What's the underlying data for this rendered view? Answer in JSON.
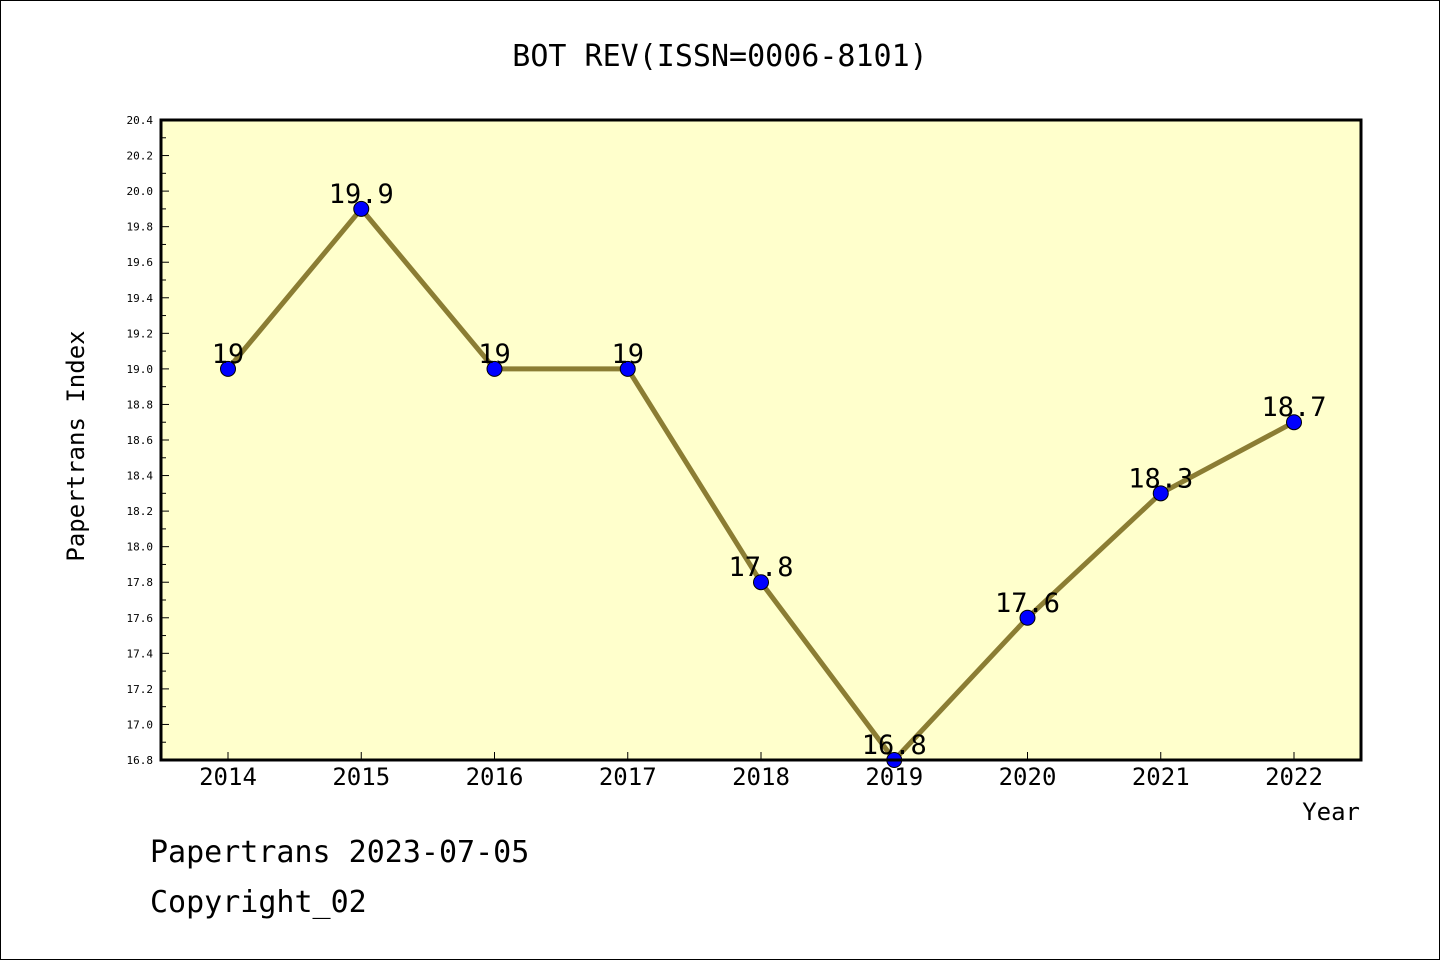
{
  "chart_data": {
    "type": "line",
    "title": "BOT REV(ISSN=0006-8101)",
    "xlabel": "Year",
    "ylabel": "Papertrans Index",
    "categories": [
      "2014",
      "2015",
      "2016",
      "2017",
      "2018",
      "2019",
      "2020",
      "2021",
      "2022"
    ],
    "values": [
      19.0,
      19.9,
      19.0,
      19.0,
      17.8,
      16.8,
      17.6,
      18.3,
      18.7
    ],
    "data_labels": [
      "19",
      "19.9",
      "19",
      "19",
      "17.8",
      "16.8",
      "17.6",
      "18.3",
      "18.7"
    ],
    "ylim": [
      16.8,
      20.4
    ],
    "yticks": [
      "16.8",
      "17.0",
      "17.2",
      "17.4",
      "17.6",
      "17.8",
      "18.0",
      "18.2",
      "18.4",
      "18.6",
      "18.8",
      "19.0",
      "19.2",
      "19.4",
      "19.6",
      "19.8",
      "20.0",
      "20.2",
      "20.4"
    ],
    "grid": false,
    "colors": {
      "plot_background": "#ffffcc",
      "line": "#8b7d33",
      "marker": "#0000ff"
    }
  },
  "footer": {
    "line1": "Papertrans 2023-07-05",
    "line2": "Copyright_02"
  }
}
